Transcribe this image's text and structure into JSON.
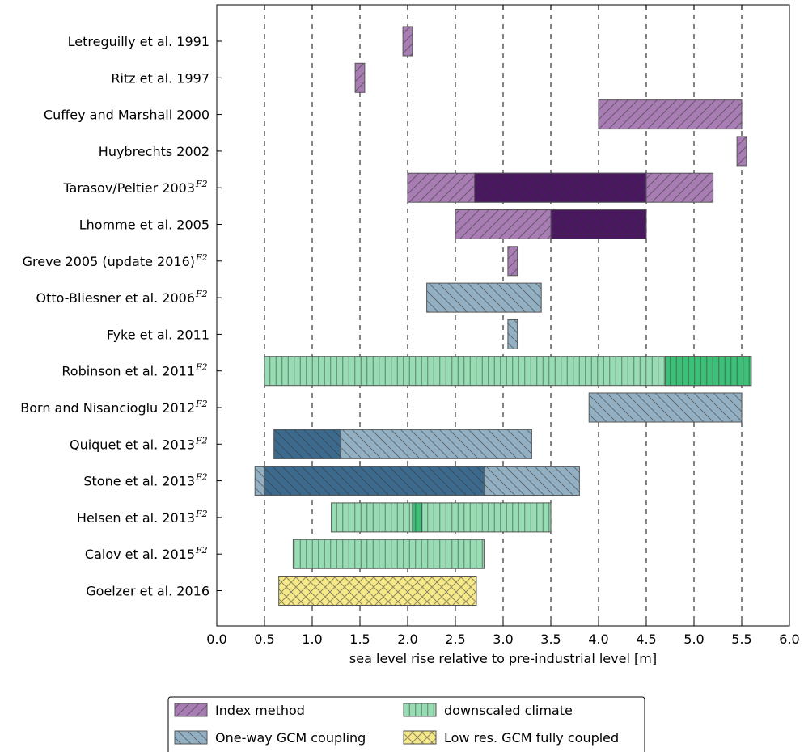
{
  "chart_data": {
    "type": "bar",
    "orientation": "horizontal-range",
    "xlabel": "sea level rise relative to pre-industrial level [m]",
    "xlim": [
      0.0,
      6.0
    ],
    "xticks": [
      "0.0",
      "0.5",
      "1.0",
      "1.5",
      "2.0",
      "2.5",
      "3.0",
      "3.5",
      "4.0",
      "4.5",
      "5.0",
      "5.5",
      "6.0"
    ],
    "grid": "vertical dashed at each tick",
    "categories": [
      {
        "label": "Letreguilly et al. 1991",
        "sup": ""
      },
      {
        "label": "Ritz et al. 1997",
        "sup": ""
      },
      {
        "label": "Cuffey and Marshall 2000",
        "sup": ""
      },
      {
        "label": "Huybrechts 2002",
        "sup": ""
      },
      {
        "label": "Tarasov/Peltier 2003",
        "sup": "F2"
      },
      {
        "label": "Lhomme et al. 2005",
        "sup": ""
      },
      {
        "label": "Greve 2005 (update 2016)",
        "sup": "F2"
      },
      {
        "label": "Otto-Bliesner et al. 2006",
        "sup": "F2"
      },
      {
        "label": "Fyke et al. 2011",
        "sup": ""
      },
      {
        "label": "Robinson et al. 2011",
        "sup": "F2"
      },
      {
        "label": "Born and Nisancioglu 2012",
        "sup": "F2"
      },
      {
        "label": "Quiquet et al. 2013",
        "sup": "F2"
      },
      {
        "label": "Stone et al. 2013",
        "sup": "F2"
      },
      {
        "label": "Helsen et al. 2013",
        "sup": "F2"
      },
      {
        "label": "Calov et al. 2015",
        "sup": "F2"
      },
      {
        "label": "Goelzer et al. 2016",
        "sup": ""
      }
    ],
    "ranges": [
      {
        "row": 0,
        "method": "index",
        "start": 1.95,
        "end": 2.05,
        "emphasis": false
      },
      {
        "row": 1,
        "method": "index",
        "start": 1.45,
        "end": 1.55,
        "emphasis": false
      },
      {
        "row": 2,
        "method": "index",
        "start": 4.0,
        "end": 5.5,
        "emphasis": false
      },
      {
        "row": 3,
        "method": "index",
        "start": 5.45,
        "end": 5.55,
        "emphasis": false
      },
      {
        "row": 4,
        "method": "index",
        "start": 2.0,
        "end": 5.2,
        "emphasis": false
      },
      {
        "row": 4,
        "method": "index",
        "start": 2.7,
        "end": 4.5,
        "emphasis": true
      },
      {
        "row": 5,
        "method": "index",
        "start": 2.5,
        "end": 4.5,
        "emphasis": false
      },
      {
        "row": 5,
        "method": "index",
        "start": 3.5,
        "end": 4.5,
        "emphasis": true
      },
      {
        "row": 6,
        "method": "index",
        "start": 3.05,
        "end": 3.15,
        "emphasis": false
      },
      {
        "row": 7,
        "method": "oneway",
        "start": 2.2,
        "end": 3.4,
        "emphasis": false
      },
      {
        "row": 8,
        "method": "oneway",
        "start": 3.05,
        "end": 3.15,
        "emphasis": false
      },
      {
        "row": 9,
        "method": "downscaled",
        "start": 0.5,
        "end": 5.6,
        "emphasis": false
      },
      {
        "row": 9,
        "method": "downscaled",
        "start": 4.7,
        "end": 5.6,
        "emphasis": true
      },
      {
        "row": 10,
        "method": "oneway",
        "start": 3.9,
        "end": 5.5,
        "emphasis": false
      },
      {
        "row": 11,
        "method": "oneway",
        "start": 0.6,
        "end": 3.3,
        "emphasis": false
      },
      {
        "row": 11,
        "method": "oneway",
        "start": 0.6,
        "end": 1.3,
        "emphasis": true
      },
      {
        "row": 12,
        "method": "oneway",
        "start": 0.4,
        "end": 3.8,
        "emphasis": false
      },
      {
        "row": 12,
        "method": "oneway",
        "start": 0.5,
        "end": 2.8,
        "emphasis": true
      },
      {
        "row": 13,
        "method": "downscaled",
        "start": 1.2,
        "end": 3.5,
        "emphasis": false
      },
      {
        "row": 13,
        "method": "downscaled",
        "start": 2.05,
        "end": 2.15,
        "emphasis": true
      },
      {
        "row": 14,
        "method": "downscaled",
        "start": 0.8,
        "end": 2.8,
        "emphasis": false
      },
      {
        "row": 15,
        "method": "fullycoupled",
        "start": 0.65,
        "end": 2.72,
        "emphasis": false
      }
    ],
    "methods": {
      "index": {
        "label": "Index method",
        "light": "#a87db4",
        "dark": "#4a1761",
        "hatch": "forward"
      },
      "oneway": {
        "label": "One-way GCM coupling",
        "light": "#93afc2",
        "dark": "#3c6a8d",
        "hatch": "backward"
      },
      "downscaled": {
        "label": "downscaled climate",
        "light": "#98dcb4",
        "dark": "#3ebf78",
        "hatch": "vertical"
      },
      "fullycoupled": {
        "label": "Low res. GCM fully coupled",
        "light": "#f5e98a",
        "dark": "#e8d24a",
        "hatch": "cross"
      }
    },
    "legend": {
      "placement": "bottom-center",
      "order": [
        "index",
        "downscaled",
        "oneway",
        "fullycoupled"
      ]
    }
  }
}
